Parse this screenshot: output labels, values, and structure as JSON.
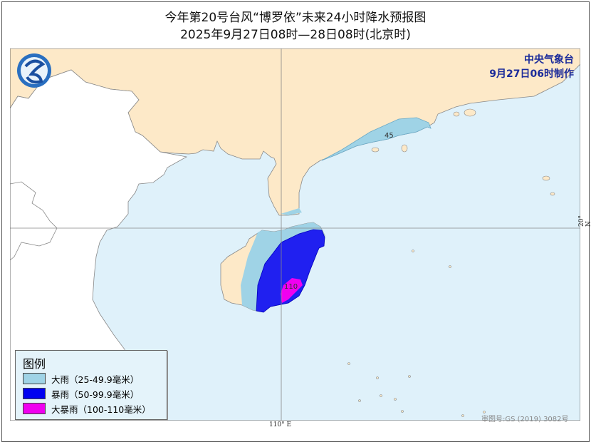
{
  "title": "今年第20号台风“博罗依”未来24小时降水预报图",
  "subtitle": "2025年9月27日08时—28日08时(北京时)",
  "agency": {
    "name": "中央气象台",
    "issued": "9月27日06时制作"
  },
  "legend": {
    "title": "图例",
    "items": [
      {
        "label": "大雨（25-49.9毫米）",
        "color": "#9fd3e6"
      },
      {
        "label": "暴雨（50-99.9毫米）",
        "color": "#2020f0"
      },
      {
        "label": "大暴雨（100-110毫米）",
        "color": "#f000f0"
      }
    ]
  },
  "contour_labels": {
    "heavy_rain": "45",
    "max": "110"
  },
  "axes": {
    "lon_label": "110° E",
    "lat_label": "20° N"
  },
  "map_approval": "审图号:GS (2019) 3082号",
  "colors": {
    "land": "#fde9c8",
    "foreign_land": "#ffffff",
    "sea": "#dff1fa"
  }
}
